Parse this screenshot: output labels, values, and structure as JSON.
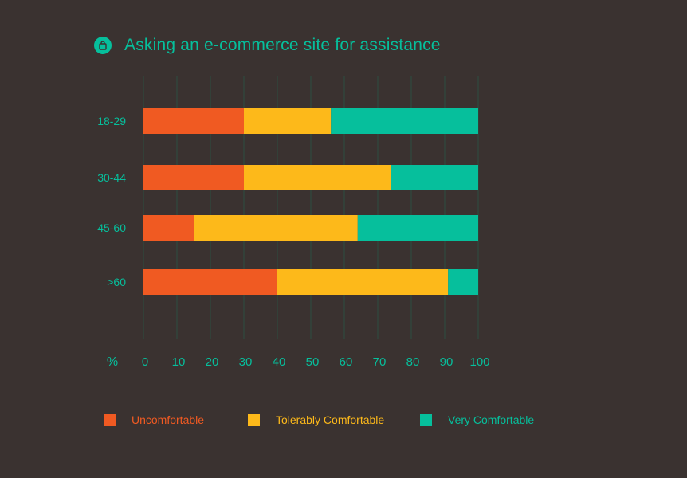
{
  "title": "Asking an e-commerce site for assistance",
  "icon": "shopping-bag-icon",
  "colors": {
    "background": "#3a3230",
    "accent": "#06bf9c",
    "gridline": "#2f4a3f"
  },
  "chart_data": {
    "type": "bar",
    "orientation": "horizontal",
    "stacked": true,
    "categories": [
      "18-29",
      "30-44",
      "45-60",
      ">60"
    ],
    "series": [
      {
        "name": "Uncomfortable",
        "color": "#f05a22",
        "values": [
          30,
          30,
          15,
          40
        ]
      },
      {
        "name": "Tolerably Comfortable",
        "color": "#fdb91a",
        "values": [
          26,
          44,
          49,
          51
        ]
      },
      {
        "name": "Very Comfortable",
        "color": "#06bf9c",
        "values": [
          44,
          26,
          36,
          9
        ]
      }
    ],
    "xlabel": "%",
    "xlim": [
      0,
      100
    ],
    "xticks": [
      0,
      10,
      20,
      30,
      40,
      50,
      60,
      70,
      80,
      90,
      100
    ],
    "grid": true,
    "legend_position": "bottom"
  }
}
